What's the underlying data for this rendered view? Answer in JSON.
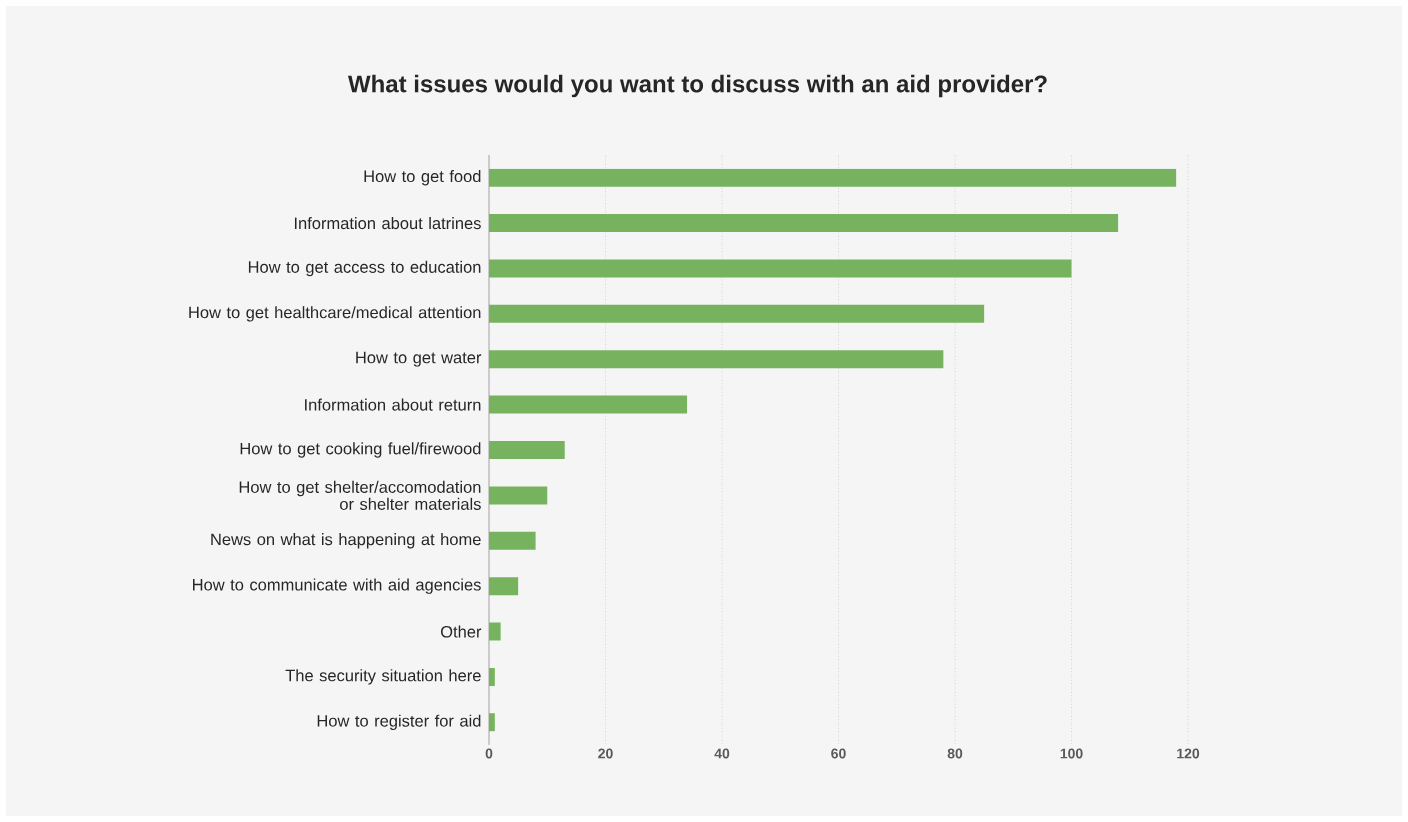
{
  "chart_data": {
    "type": "bar",
    "orientation": "horizontal",
    "title": "What issues would you want to discuss with an aid provider?",
    "categories": [
      "How to get food",
      "Information about latrines",
      "How to get access to education",
      "How to get healthcare/medical attention",
      "How to get water",
      "Information about return",
      "How to get cooking fuel/firewood",
      "How to get shelter/accomodation or shelter materials",
      "News on what is happening at home",
      "How to communicate with aid agencies",
      "Other",
      "The security situation here",
      "How to register for aid"
    ],
    "values": [
      118,
      108,
      100,
      85,
      78,
      34,
      13,
      10,
      8,
      5,
      2,
      1,
      1
    ],
    "color": "#77b35f",
    "xlim": [
      0,
      120
    ],
    "xticks": [
      0,
      20,
      40,
      60,
      80,
      100,
      120
    ],
    "grid": "x"
  }
}
